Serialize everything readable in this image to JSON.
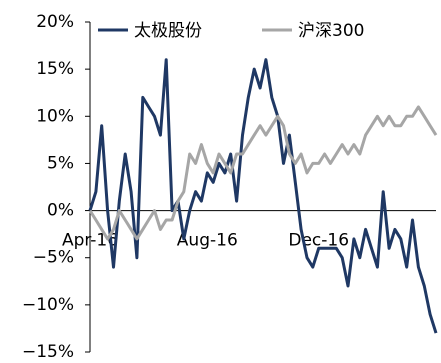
{
  "chart_data": {
    "type": "line",
    "categories": [
      "Apr-16",
      null,
      null,
      null,
      null,
      null,
      null,
      null,
      null,
      null,
      null,
      null,
      null,
      null,
      null,
      null,
      null,
      null,
      null,
      null,
      "Aug-16",
      null,
      null,
      null,
      null,
      null,
      null,
      null,
      null,
      null,
      null,
      null,
      null,
      null,
      null,
      null,
      null,
      null,
      null,
      "Dec-16",
      null,
      null,
      null,
      null,
      null,
      null,
      null,
      null,
      null,
      null,
      null,
      null,
      null,
      null,
      null,
      null,
      null,
      null,
      null,
      null
    ],
    "series": [
      {
        "name": "太极股份",
        "color": "#1f3864",
        "values": [
          0,
          2,
          9,
          0,
          -6,
          1,
          6,
          2,
          -5,
          12,
          11,
          10,
          8,
          16,
          0,
          1,
          -3,
          0,
          2,
          1,
          4,
          3,
          5,
          4,
          6,
          1,
          8,
          12,
          15,
          13,
          16,
          12,
          10,
          5,
          8,
          3,
          -2,
          -5,
          -6,
          -4,
          -4,
          -4,
          -4,
          -5,
          -8,
          -3,
          -5,
          -2,
          -4,
          -6,
          2,
          -4,
          -2,
          -3,
          -6,
          -1,
          -6,
          -8,
          -11,
          -13
        ]
      },
      {
        "name": "沪深300",
        "color": "#a6a6a6",
        "values": [
          0,
          -1,
          -2,
          -3,
          -2,
          0,
          -1,
          -2,
          -3,
          -2,
          -1,
          0,
          -2,
          -1,
          -1,
          1,
          2,
          6,
          5,
          7,
          5,
          4,
          6,
          5,
          4,
          6,
          6,
          7,
          8,
          9,
          8,
          9,
          10,
          9,
          6,
          5,
          6,
          4,
          5,
          5,
          6,
          5,
          6,
          7,
          6,
          7,
          6,
          8,
          9,
          10,
          9,
          10,
          9,
          9,
          10,
          10,
          11,
          10,
          9,
          8
        ]
      }
    ],
    "ylim": [
      -15,
      20
    ],
    "yticks": [
      {
        "value": -15,
        "label": "−15%"
      },
      {
        "value": -10,
        "label": "−10%"
      },
      {
        "value": -5,
        "label": "−5%"
      },
      {
        "value": 0,
        "label": "0%"
      },
      {
        "value": 5,
        "label": "5%"
      },
      {
        "value": 10,
        "label": "10%"
      },
      {
        "value": 15,
        "label": "15%"
      },
      {
        "value": 20,
        "label": "20%"
      }
    ],
    "legend": "top"
  }
}
